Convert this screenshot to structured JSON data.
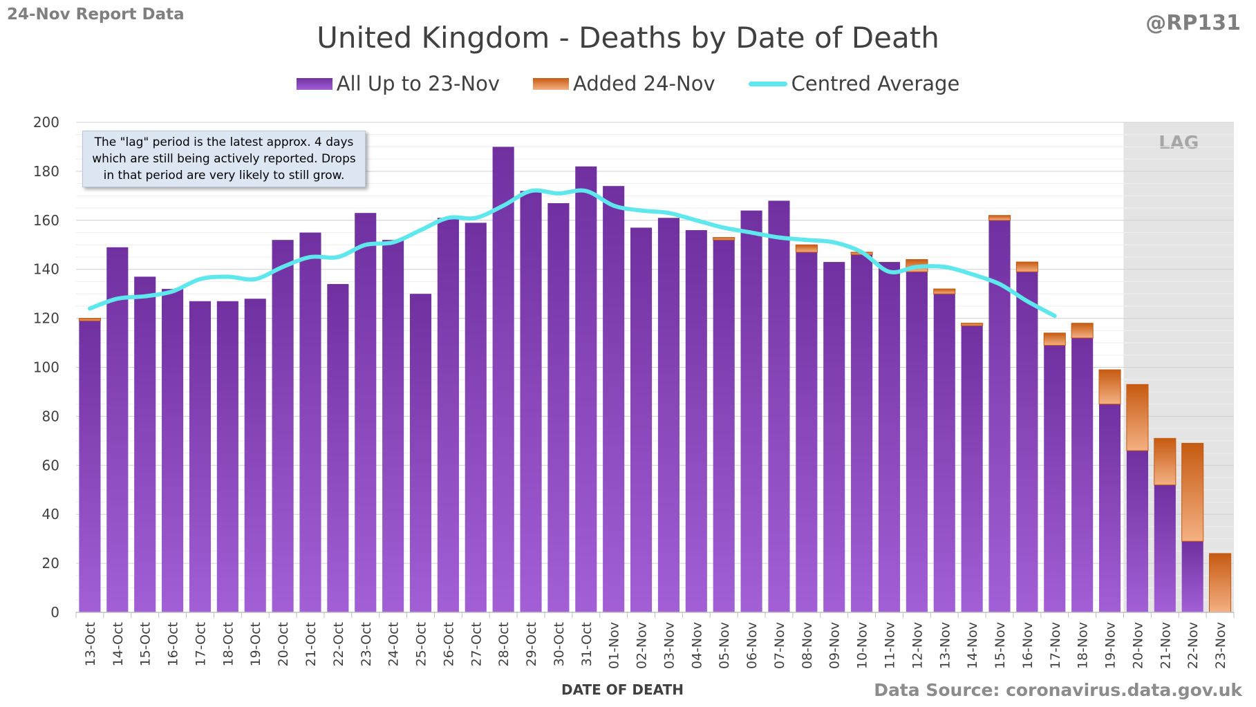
{
  "header": {
    "report_label": "24-Nov Report Data",
    "author": "@RP131",
    "title": "United Kingdom - Deaths by Date of Death"
  },
  "annotation": {
    "line1": "The \"lag\" period is the latest approx. 4 days",
    "line2": "which are still being actively reported.  Drops",
    "line3": "in that period are very likely to still grow."
  },
  "lag_label": "LAG",
  "footer": {
    "source": "Data Source: coronavirus.data.gov.uk",
    "xlabel": "DATE OF DEATH"
  },
  "colors": {
    "base_top": "#7030a0",
    "base_bottom": "#a35fd6",
    "added_top": "#c65a11",
    "added_bottom": "#f4b183",
    "average": "#5ee8ee",
    "lag_shade": "#e4e4e4",
    "grid": "#d9d9d9"
  },
  "chart_data": {
    "type": "bar",
    "stacked": true,
    "title": "United Kingdom - Deaths by Date of Death",
    "xlabel": "DATE OF DEATH",
    "ylabel": "",
    "ylim": [
      0,
      200
    ],
    "yticks": [
      0,
      20,
      40,
      60,
      80,
      100,
      120,
      140,
      160,
      180,
      200
    ],
    "legend_position": "top",
    "lag_start_category": "20-Nov",
    "categories": [
      "13-Oct",
      "14-Oct",
      "15-Oct",
      "16-Oct",
      "17-Oct",
      "18-Oct",
      "19-Oct",
      "20-Oct",
      "21-Oct",
      "22-Oct",
      "23-Oct",
      "24-Oct",
      "25-Oct",
      "26-Oct",
      "27-Oct",
      "28-Oct",
      "29-Oct",
      "30-Oct",
      "31-Oct",
      "01-Nov",
      "02-Nov",
      "03-Nov",
      "04-Nov",
      "05-Nov",
      "06-Nov",
      "07-Nov",
      "08-Nov",
      "09-Nov",
      "10-Nov",
      "11-Nov",
      "12-Nov",
      "13-Nov",
      "14-Nov",
      "15-Nov",
      "16-Nov",
      "17-Nov",
      "18-Nov",
      "19-Nov",
      "20-Nov",
      "21-Nov",
      "22-Nov",
      "23-Nov"
    ],
    "series": [
      {
        "name": "All Up to 23-Nov",
        "kind": "bar",
        "values": [
          119,
          149,
          137,
          132,
          127,
          127,
          128,
          152,
          155,
          134,
          163,
          152,
          130,
          161,
          159,
          190,
          172,
          167,
          182,
          174,
          157,
          161,
          156,
          152,
          164,
          168,
          147,
          143,
          146,
          143,
          139,
          130,
          117,
          160,
          139,
          109,
          112,
          85,
          66,
          52,
          29,
          0
        ]
      },
      {
        "name": "Added 24-Nov",
        "kind": "bar",
        "values": [
          1,
          0,
          0,
          0,
          0,
          0,
          0,
          0,
          0,
          0,
          0,
          0,
          0,
          0,
          0,
          0,
          0,
          0,
          0,
          0,
          0,
          0,
          0,
          1,
          0,
          0,
          3,
          0,
          1,
          0,
          5,
          2,
          1,
          2,
          4,
          5,
          6,
          14,
          27,
          19,
          40,
          24
        ]
      },
      {
        "name": "Centred Average",
        "kind": "line",
        "values": [
          124,
          128,
          129,
          131,
          136,
          137,
          136,
          141,
          145,
          145,
          150,
          151,
          156,
          161,
          161,
          166,
          172,
          171,
          172,
          166,
          164,
          163,
          160,
          157,
          155,
          153,
          152,
          151,
          147,
          139,
          141,
          141,
          138,
          134,
          127,
          121,
          null,
          null,
          null,
          null,
          null,
          null
        ]
      }
    ]
  }
}
